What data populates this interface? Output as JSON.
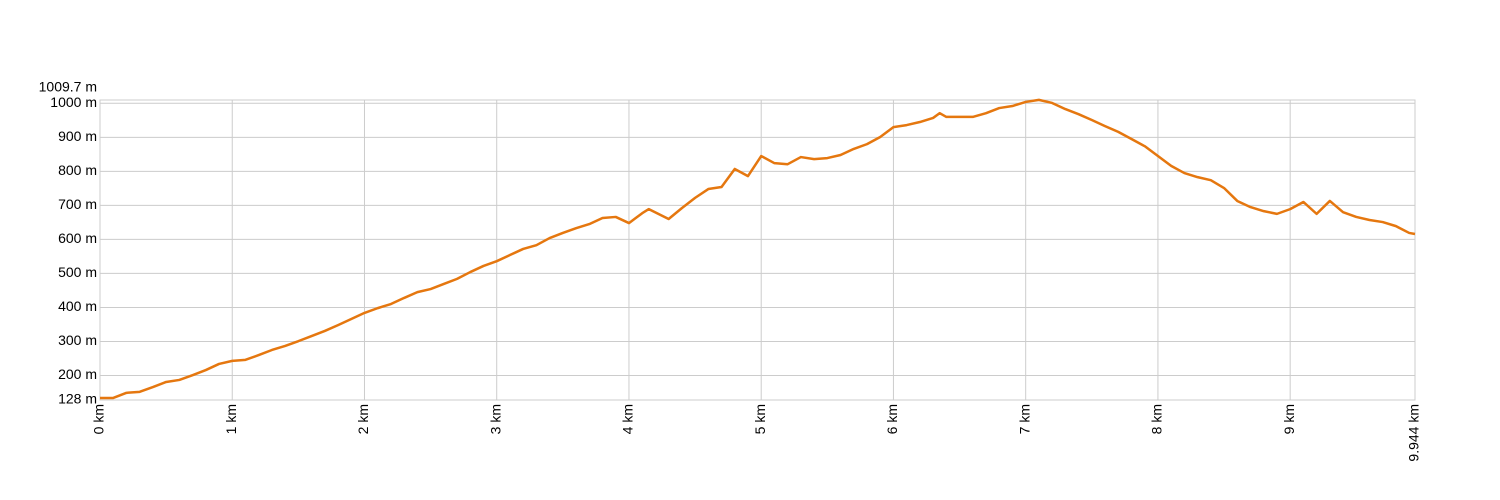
{
  "chart_data": {
    "type": "line",
    "color": "#e5770f",
    "grid": true,
    "x": [
      0,
      0.1,
      0.2,
      0.3,
      0.4,
      0.5,
      0.6,
      0.7,
      0.8,
      0.9,
      1.0,
      1.1,
      1.2,
      1.3,
      1.4,
      1.5,
      1.6,
      1.7,
      1.8,
      1.9,
      2.0,
      2.1,
      2.2,
      2.3,
      2.4,
      2.5,
      2.6,
      2.7,
      2.8,
      2.9,
      3.0,
      3.1,
      3.2,
      3.3,
      3.4,
      3.5,
      3.6,
      3.7,
      3.8,
      3.9,
      4.0,
      4.1,
      4.15,
      4.3,
      4.4,
      4.5,
      4.6,
      4.7,
      4.8,
      4.9,
      5.0,
      5.1,
      5.2,
      5.3,
      5.4,
      5.5,
      5.6,
      5.7,
      5.8,
      5.9,
      6.0,
      6.1,
      6.2,
      6.3,
      6.35,
      6.4,
      6.6,
      6.7,
      6.8,
      6.9,
      7.0,
      7.1,
      7.2,
      7.3,
      7.4,
      7.5,
      7.6,
      7.7,
      7.8,
      7.9,
      8.0,
      8.1,
      8.2,
      8.3,
      8.4,
      8.5,
      8.6,
      8.7,
      8.8,
      8.9,
      9.0,
      9.1,
      9.2,
      9.3,
      9.4,
      9.5,
      9.6,
      9.7,
      9.8,
      9.9,
      9.944
    ],
    "values": [
      134,
      134,
      149,
      152,
      166,
      181,
      187,
      201,
      216,
      234,
      243,
      246,
      260,
      275,
      287,
      301,
      316,
      331,
      348,
      366,
      384,
      398,
      410,
      428,
      445,
      454,
      469,
      484,
      504,
      522,
      536,
      554,
      572,
      583,
      604,
      619,
      633,
      645,
      663,
      666,
      648,
      677,
      689,
      660,
      692,
      722,
      748,
      754,
      807,
      786,
      845,
      824,
      821,
      842,
      836,
      839,
      848,
      866,
      880,
      901,
      930,
      936,
      945,
      957,
      971,
      960,
      960,
      971,
      986,
      992,
      1004,
      1010,
      1001,
      983,
      968,
      951,
      933,
      916,
      895,
      874,
      845,
      816,
      795,
      783,
      774,
      751,
      713,
      695,
      683,
      675,
      689,
      710,
      675,
      713,
      680,
      666,
      657,
      651,
      639,
      619,
      616
    ],
    "xlim": [
      0,
      9.944
    ],
    "xticks": [
      {
        "value": 0,
        "label": "0 km"
      },
      {
        "value": 1,
        "label": "1 km"
      },
      {
        "value": 2,
        "label": "2 km"
      },
      {
        "value": 3,
        "label": "3 km"
      },
      {
        "value": 4,
        "label": "4 km"
      },
      {
        "value": 5,
        "label": "5 km"
      },
      {
        "value": 6,
        "label": "6 km"
      },
      {
        "value": 7,
        "label": "7 km"
      },
      {
        "value": 8,
        "label": "8 km"
      },
      {
        "value": 9,
        "label": "9 km"
      },
      {
        "value": 9.944,
        "label": "9.944 km"
      }
    ],
    "ylim": [
      128,
      1009.7
    ],
    "yticks": [
      {
        "value": 128,
        "label": "128 m"
      },
      {
        "value": 200,
        "label": "200 m"
      },
      {
        "value": 300,
        "label": "300 m"
      },
      {
        "value": 400,
        "label": "400 m"
      },
      {
        "value": 500,
        "label": "500 m"
      },
      {
        "value": 600,
        "label": "600 m"
      },
      {
        "value": 700,
        "label": "700 m"
      },
      {
        "value": 800,
        "label": "800 m"
      },
      {
        "value": 900,
        "label": "900 m"
      },
      {
        "value": 1000,
        "label": "1000 m"
      },
      {
        "value": 1009.7,
        "label": "1009.7 m"
      }
    ]
  }
}
